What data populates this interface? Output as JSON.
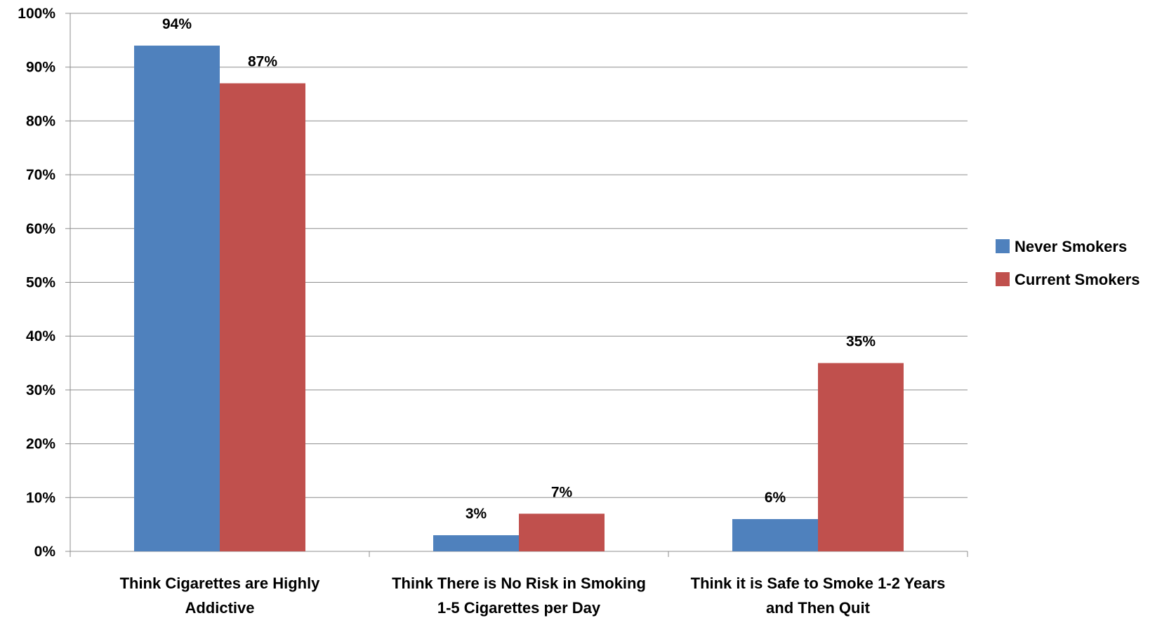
{
  "chart_data": {
    "type": "bar",
    "categories": [
      [
        "Think Cigarettes are Highly",
        "Addictive"
      ],
      [
        "Think There is No Risk in Smoking",
        "1-5 Cigarettes per Day"
      ],
      [
        "Think it is Safe to Smoke 1-2 Years",
        "and Then Quit"
      ]
    ],
    "series": [
      {
        "name": "Never Smokers",
        "color": "#4F81BD",
        "values": [
          94,
          3,
          6
        ],
        "labels": [
          "94%",
          "3%",
          "6%"
        ]
      },
      {
        "name": "Current Smokers",
        "color": "#C0504D",
        "values": [
          87,
          7,
          35
        ],
        "labels": [
          "87%",
          "7%",
          "35%"
        ]
      }
    ],
    "ylim": [
      0,
      100
    ],
    "yticks": [
      "0%",
      "10%",
      "20%",
      "30%",
      "40%",
      "50%",
      "60%",
      "70%",
      "80%",
      "90%",
      "100%"
    ],
    "grid": true,
    "legend": "right",
    "title": "",
    "xlabel": "",
    "ylabel": ""
  }
}
